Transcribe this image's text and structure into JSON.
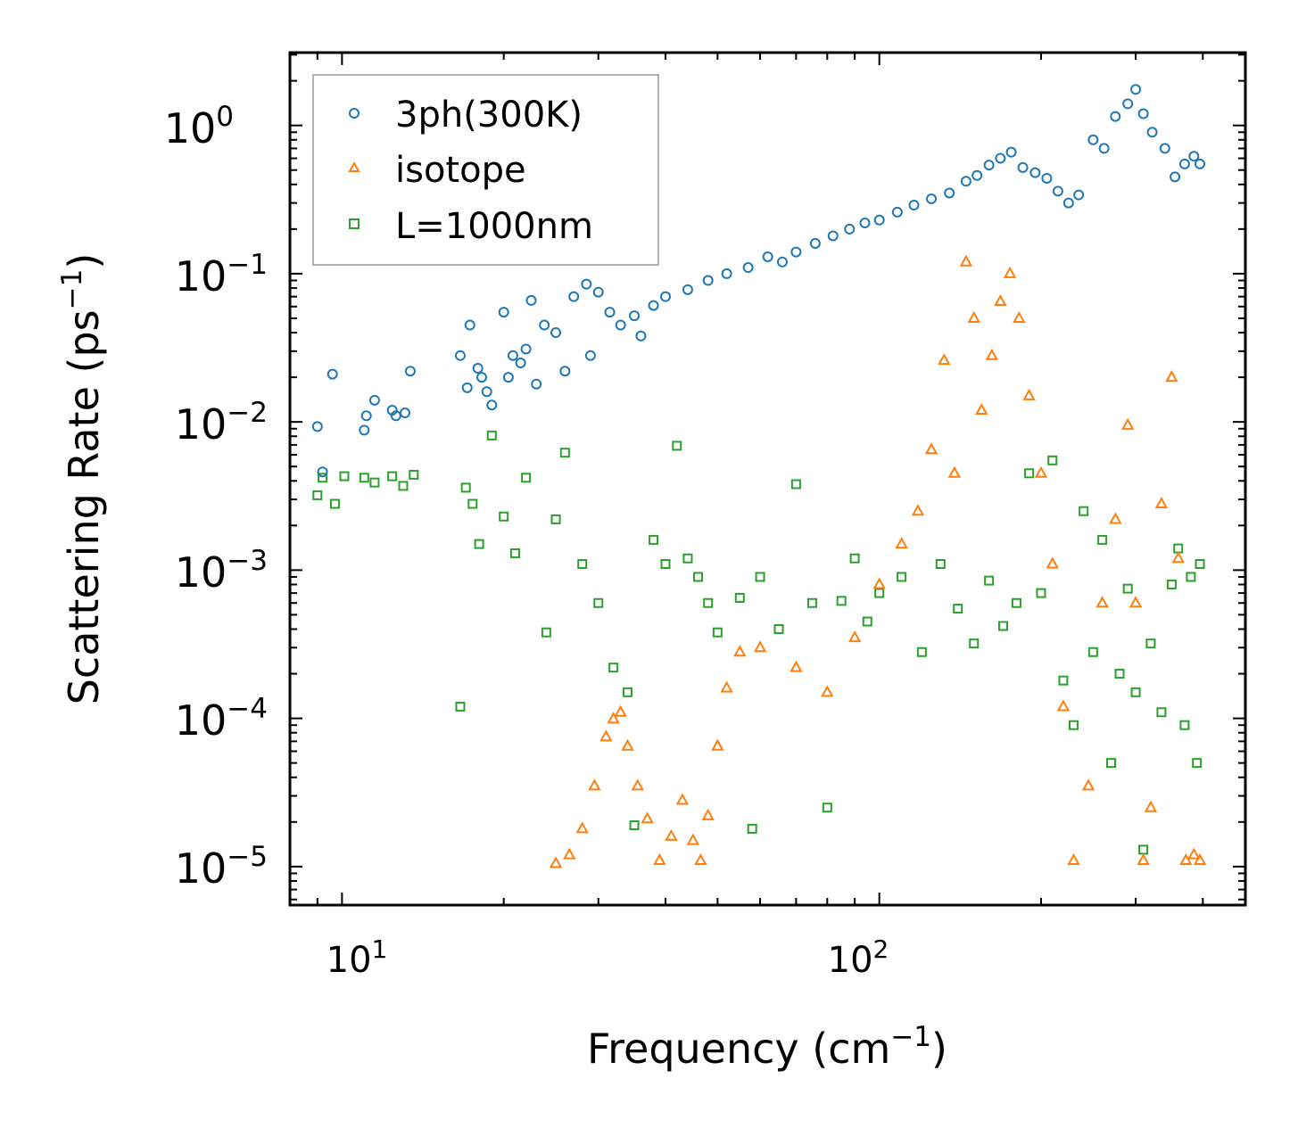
{
  "chart_data": {
    "type": "scatter",
    "xscale": "log",
    "yscale": "log",
    "xlim": [
      8.0,
      480.0
    ],
    "ylim": [
      5.5e-06,
      3.1
    ],
    "xlabel": {
      "base": "Frequency (cm",
      "sup": "−1",
      "end": ")"
    },
    "ylabel": {
      "base": "Scattering Rate (ps",
      "sup": "−1",
      "end": ")"
    },
    "x_ticks": [
      {
        "value": 10,
        "base": "10",
        "sup": "1"
      },
      {
        "value": 100,
        "base": "10",
        "sup": "2"
      }
    ],
    "y_ticks": [
      {
        "value": 1,
        "base": "10",
        "sup": "0"
      },
      {
        "value": 0.1,
        "base": "10",
        "sup": "−1"
      },
      {
        "value": 0.01,
        "base": "10",
        "sup": "−2"
      },
      {
        "value": 0.001,
        "base": "10",
        "sup": "−3"
      },
      {
        "value": 0.0001,
        "base": "10",
        "sup": "−4"
      },
      {
        "value": 1e-05,
        "base": "10",
        "sup": "−5"
      }
    ],
    "legend_position": "top-left",
    "series": [
      {
        "name": "3ph(300K)",
        "marker": "circle",
        "color": "#1f77b4",
        "points": [
          [
            9.0,
            0.0093
          ],
          [
            9.2,
            0.0046
          ],
          [
            9.6,
            0.021
          ],
          [
            11.0,
            0.0088
          ],
          [
            11.1,
            0.011
          ],
          [
            11.5,
            0.014
          ],
          [
            12.4,
            0.012
          ],
          [
            12.6,
            0.011
          ],
          [
            13.1,
            0.0115
          ],
          [
            13.4,
            0.022
          ],
          [
            16.6,
            0.028
          ],
          [
            17.1,
            0.017
          ],
          [
            17.3,
            0.045
          ],
          [
            17.9,
            0.023
          ],
          [
            18.2,
            0.02
          ],
          [
            18.6,
            0.016
          ],
          [
            19.0,
            0.013
          ],
          [
            20.0,
            0.055
          ],
          [
            20.4,
            0.02
          ],
          [
            20.8,
            0.028
          ],
          [
            21.5,
            0.025
          ],
          [
            22.0,
            0.031
          ],
          [
            22.5,
            0.066
          ],
          [
            23.0,
            0.018
          ],
          [
            23.8,
            0.045
          ],
          [
            25.0,
            0.04
          ],
          [
            26.0,
            0.022
          ],
          [
            27.0,
            0.07
          ],
          [
            28.5,
            0.085
          ],
          [
            29.0,
            0.028
          ],
          [
            30.0,
            0.075
          ],
          [
            31.5,
            0.055
          ],
          [
            33.0,
            0.045
          ],
          [
            35.0,
            0.052
          ],
          [
            36.0,
            0.038
          ],
          [
            38.0,
            0.061
          ],
          [
            40.0,
            0.07
          ],
          [
            44.0,
            0.078
          ],
          [
            48.0,
            0.09
          ],
          [
            52.0,
            0.1
          ],
          [
            57.0,
            0.11
          ],
          [
            62.0,
            0.13
          ],
          [
            66.0,
            0.12
          ],
          [
            70.0,
            0.14
          ],
          [
            76.0,
            0.16
          ],
          [
            82.0,
            0.18
          ],
          [
            88.0,
            0.2
          ],
          [
            94.0,
            0.22
          ],
          [
            100.0,
            0.23
          ],
          [
            108.0,
            0.26
          ],
          [
            116.0,
            0.29
          ],
          [
            125.0,
            0.32
          ],
          [
            135.0,
            0.35
          ],
          [
            145.0,
            0.42
          ],
          [
            152.0,
            0.46
          ],
          [
            160.0,
            0.54
          ],
          [
            168.0,
            0.6
          ],
          [
            176.0,
            0.66
          ],
          [
            185.0,
            0.52
          ],
          [
            195.0,
            0.48
          ],
          [
            205.0,
            0.44
          ],
          [
            215.0,
            0.36
          ],
          [
            225.0,
            0.3
          ],
          [
            235.0,
            0.34
          ],
          [
            250.0,
            0.8
          ],
          [
            262.0,
            0.7
          ],
          [
            275.0,
            1.15
          ],
          [
            290.0,
            1.4
          ],
          [
            300.0,
            1.75
          ],
          [
            310.0,
            1.2
          ],
          [
            322.0,
            0.9
          ],
          [
            340.0,
            0.7
          ],
          [
            355.0,
            0.45
          ],
          [
            370.0,
            0.55
          ],
          [
            385.0,
            0.62
          ],
          [
            395.0,
            0.55
          ]
        ]
      },
      {
        "name": "isotope",
        "marker": "triangle",
        "color": "#ff7f0e",
        "points": [
          [
            25.0,
            1.05e-05
          ],
          [
            26.5,
            1.2e-05
          ],
          [
            28.0,
            1.8e-05
          ],
          [
            29.5,
            3.5e-05
          ],
          [
            31.0,
            7.5e-05
          ],
          [
            32.0,
            9.9e-05
          ],
          [
            33.0,
            0.00011
          ],
          [
            34.0,
            6.5e-05
          ],
          [
            35.5,
            3.5e-05
          ],
          [
            37.0,
            2.1e-05
          ],
          [
            39.0,
            1.1e-05
          ],
          [
            41.0,
            1.6e-05
          ],
          [
            43.0,
            2.8e-05
          ],
          [
            45.0,
            1.5e-05
          ],
          [
            46.5,
            1.1e-05
          ],
          [
            48.0,
            2.2e-05
          ],
          [
            50.0,
            6.5e-05
          ],
          [
            52.0,
            0.00016
          ],
          [
            55.0,
            0.00028
          ],
          [
            60.0,
            0.0003
          ],
          [
            70.0,
            0.00022
          ],
          [
            80.0,
            0.00015
          ],
          [
            90.0,
            0.00035
          ],
          [
            100.0,
            0.0008
          ],
          [
            110.0,
            0.0015
          ],
          [
            118.0,
            0.0025
          ],
          [
            125.0,
            0.0065
          ],
          [
            132.0,
            0.026
          ],
          [
            138.0,
            0.0045
          ],
          [
            145.0,
            0.12
          ],
          [
            150.0,
            0.05
          ],
          [
            155.0,
            0.012
          ],
          [
            162.0,
            0.028
          ],
          [
            168.0,
            0.065
          ],
          [
            175.0,
            0.1
          ],
          [
            182.0,
            0.05
          ],
          [
            190.0,
            0.015
          ],
          [
            200.0,
            0.0045
          ],
          [
            210.0,
            0.0011
          ],
          [
            220.0,
            0.00012
          ],
          [
            230.0,
            1.1e-05
          ],
          [
            245.0,
            3.5e-05
          ],
          [
            260.0,
            0.0006
          ],
          [
            275.0,
            0.0022
          ],
          [
            290.0,
            0.0095
          ],
          [
            300.0,
            0.0006
          ],
          [
            310.0,
            1.1e-05
          ],
          [
            320.0,
            2.5e-05
          ],
          [
            335.0,
            0.0028
          ],
          [
            350.0,
            0.02
          ],
          [
            360.0,
            0.0012
          ],
          [
            372.0,
            1.1e-05
          ],
          [
            385.0,
            1.2e-05
          ],
          [
            395.0,
            1.1e-05
          ]
        ]
      },
      {
        "name": "L=1000nm",
        "marker": "square",
        "color": "#2ca02c",
        "points": [
          [
            9.0,
            0.0032
          ],
          [
            9.2,
            0.0042
          ],
          [
            9.7,
            0.0028
          ],
          [
            10.1,
            0.0043
          ],
          [
            11.0,
            0.0042
          ],
          [
            11.5,
            0.0039
          ],
          [
            12.4,
            0.0043
          ],
          [
            13.0,
            0.0037
          ],
          [
            13.6,
            0.0044
          ],
          [
            16.6,
            0.00012
          ],
          [
            17.0,
            0.0036
          ],
          [
            17.5,
            0.0028
          ],
          [
            18.0,
            0.0015
          ],
          [
            19.0,
            0.0081
          ],
          [
            20.0,
            0.0023
          ],
          [
            21.0,
            0.0013
          ],
          [
            22.0,
            0.0042
          ],
          [
            24.0,
            0.00038
          ],
          [
            25.0,
            0.0022
          ],
          [
            26.0,
            0.0062
          ],
          [
            28.0,
            0.0011
          ],
          [
            30.0,
            0.0006
          ],
          [
            32.0,
            0.00022
          ],
          [
            34.0,
            0.00015
          ],
          [
            35.0,
            1.9e-05
          ],
          [
            38.0,
            0.0016
          ],
          [
            40.0,
            0.0011
          ],
          [
            42.0,
            0.0069
          ],
          [
            44.0,
            0.0012
          ],
          [
            46.0,
            0.0009
          ],
          [
            48.0,
            0.0006
          ],
          [
            50.0,
            0.00038
          ],
          [
            55.0,
            0.00065
          ],
          [
            58.0,
            1.8e-05
          ],
          [
            60.0,
            0.0009
          ],
          [
            65.0,
            0.0004
          ],
          [
            70.0,
            0.0038
          ],
          [
            75.0,
            0.0006
          ],
          [
            80.0,
            2.5e-05
          ],
          [
            85.0,
            0.00062
          ],
          [
            90.0,
            0.0012
          ],
          [
            95.0,
            0.00045
          ],
          [
            100.0,
            0.0007
          ],
          [
            110.0,
            0.0009
          ],
          [
            120.0,
            0.00028
          ],
          [
            130.0,
            0.0011
          ],
          [
            140.0,
            0.00055
          ],
          [
            150.0,
            0.00032
          ],
          [
            160.0,
            0.00085
          ],
          [
            170.0,
            0.00042
          ],
          [
            180.0,
            0.0006
          ],
          [
            190.0,
            0.0045
          ],
          [
            200.0,
            0.0007
          ],
          [
            210.0,
            0.0055
          ],
          [
            220.0,
            0.00018
          ],
          [
            230.0,
            9e-05
          ],
          [
            240.0,
            0.0025
          ],
          [
            250.0,
            0.00028
          ],
          [
            260.0,
            0.0016
          ],
          [
            270.0,
            5e-05
          ],
          [
            280.0,
            0.0002
          ],
          [
            290.0,
            0.00075
          ],
          [
            300.0,
            0.00015
          ],
          [
            310.0,
            1.3e-05
          ],
          [
            320.0,
            0.00032
          ],
          [
            335.0,
            0.00011
          ],
          [
            350.0,
            0.0008
          ],
          [
            360.0,
            0.0014
          ],
          [
            370.0,
            9e-05
          ],
          [
            380.0,
            0.0009
          ],
          [
            390.0,
            5e-05
          ],
          [
            395.0,
            0.0011
          ]
        ]
      }
    ]
  }
}
